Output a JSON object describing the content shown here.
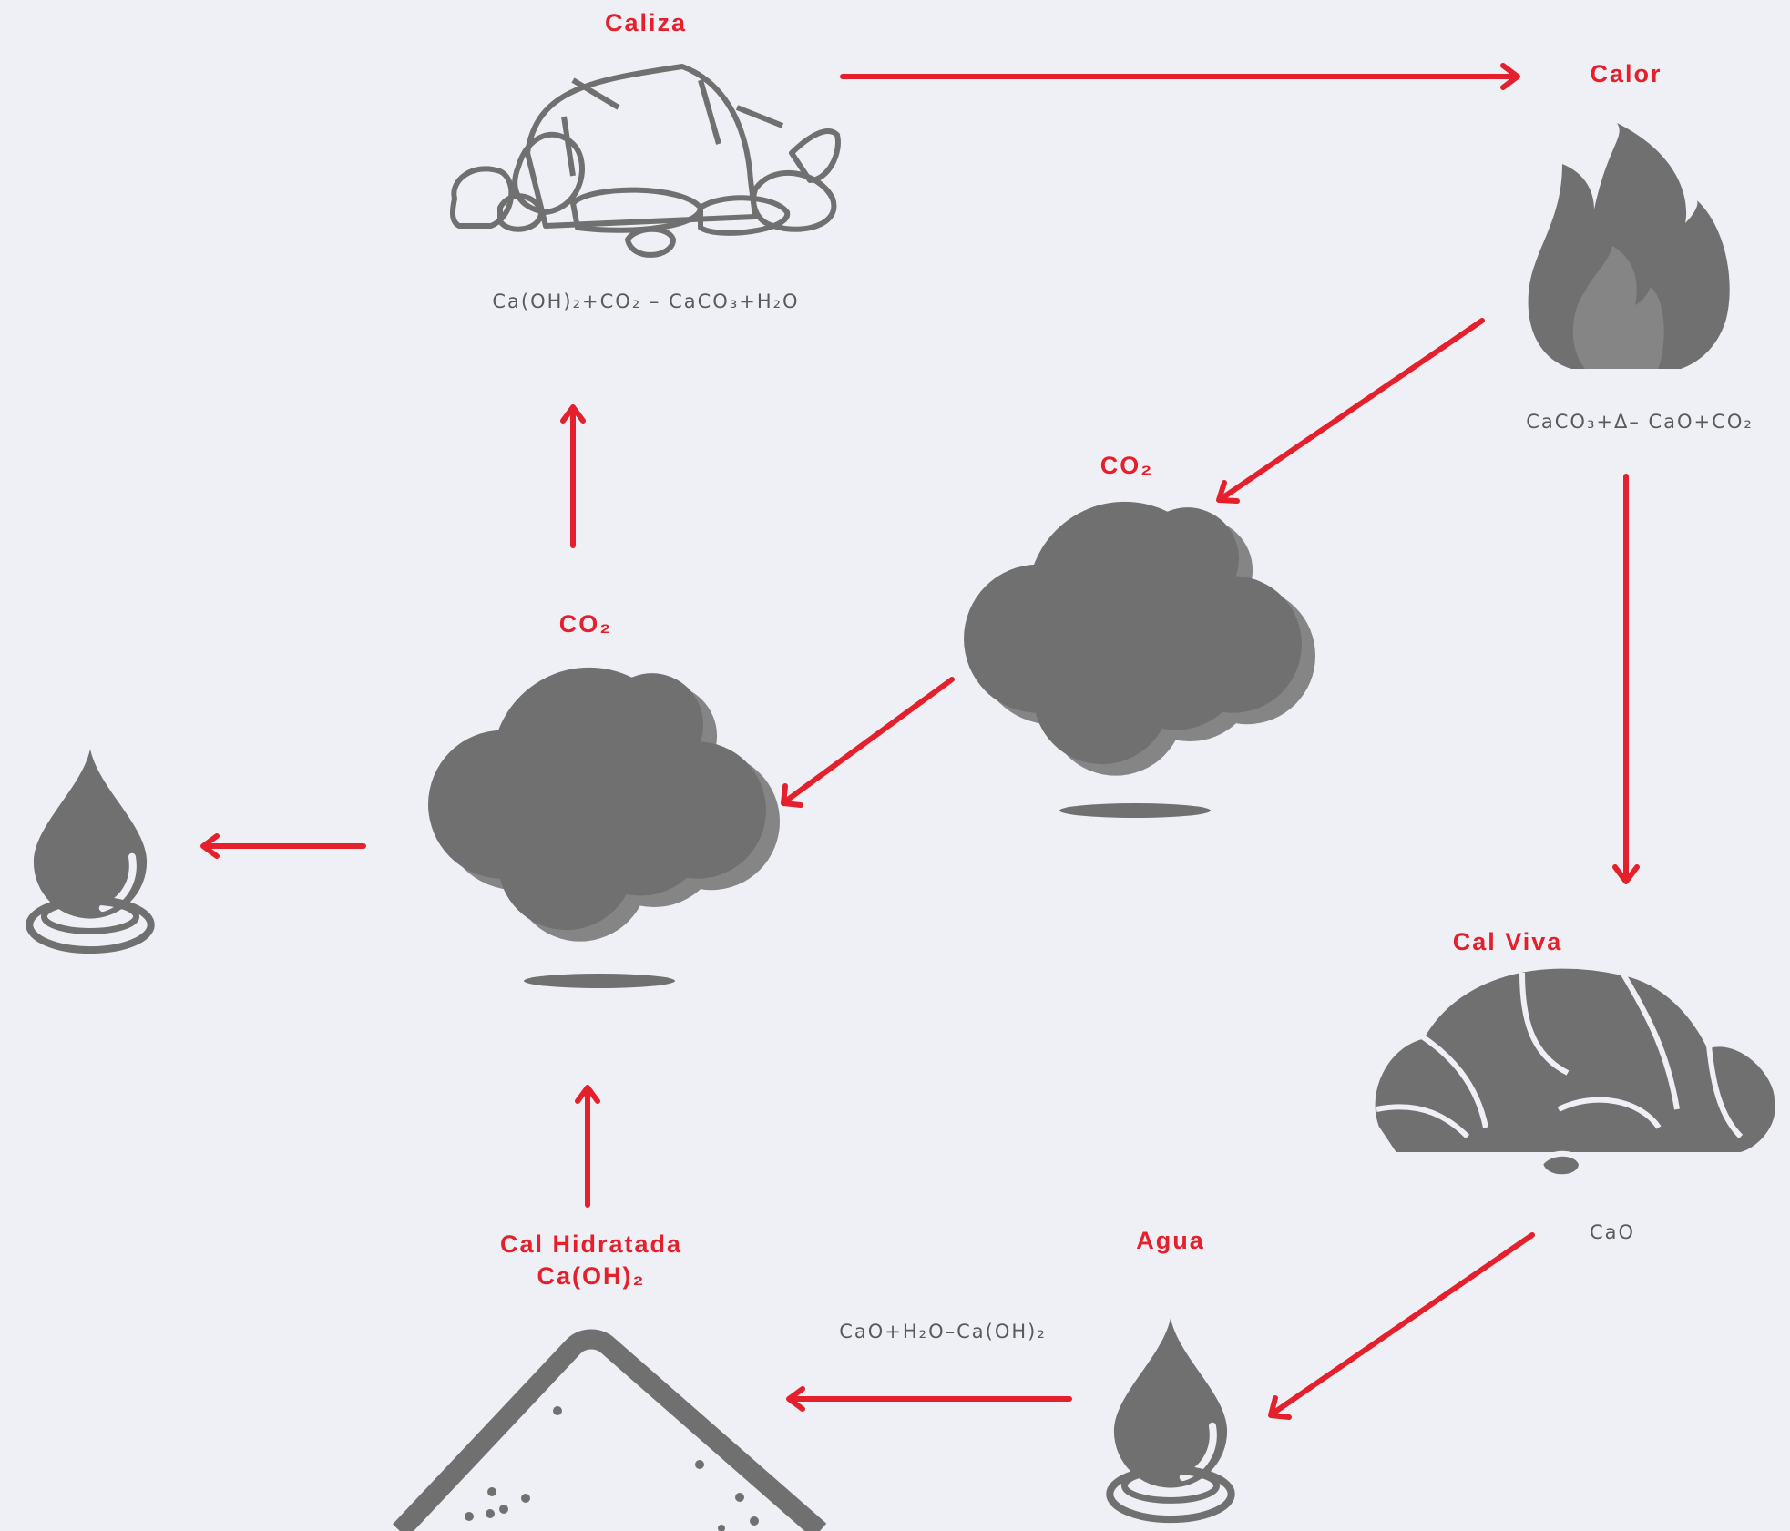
{
  "nodes": [
    {
      "label": "Caliza",
      "formula": "Ca(OH)₂+CO₂ – CaCO₃+H₂O"
    },
    {
      "label": "Calor",
      "formula": "CaCO₃+Δ– CaO+CO₂"
    },
    {
      "label": "CO₂"
    },
    {
      "label": "Cal Viva",
      "formula": "CaO"
    },
    {
      "label": "Agua"
    },
    {
      "label": "Cal Hidratada",
      "sublabel": "Ca(OH)₂"
    },
    {
      "label": "CO₂"
    }
  ],
  "arrow_labels": [
    "CaO+H₂O–Ca(OH)₂"
  ]
}
